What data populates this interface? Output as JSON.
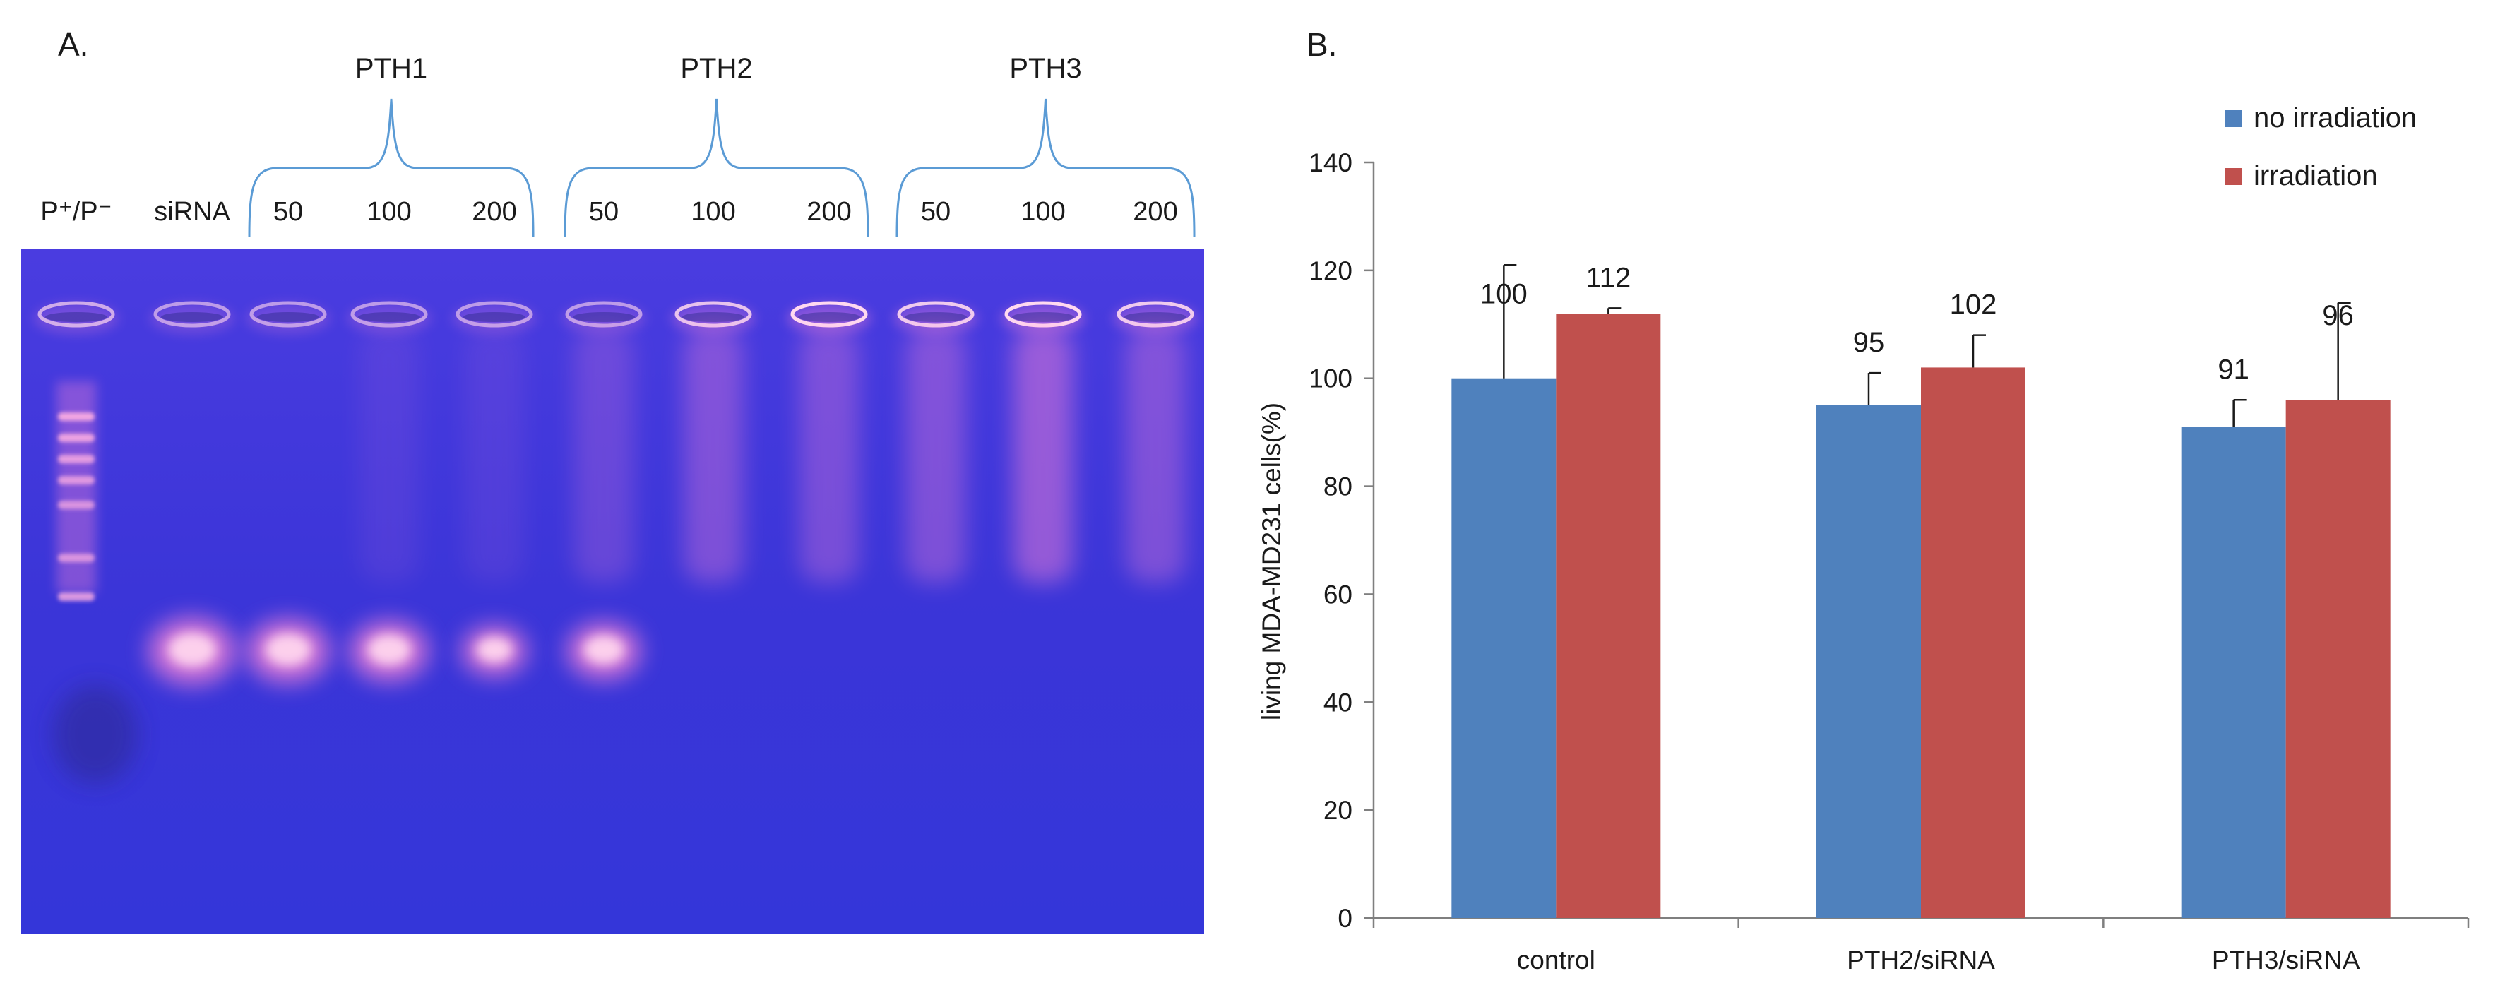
{
  "panel_a": {
    "label": "A.",
    "marker_label": "P⁺/P⁻",
    "sirna_label": "siRNA",
    "groups": [
      {
        "name": "PTH1",
        "lanes": [
          "50",
          "100",
          "200"
        ]
      },
      {
        "name": "PTH2",
        "lanes": [
          "50",
          "100",
          "200"
        ]
      },
      {
        "name": "PTH3",
        "lanes": [
          "50",
          "100",
          "200"
        ]
      }
    ],
    "colors": {
      "gel_bg": "#3b35d8",
      "band": "#ffd6ee",
      "glow": "#ff86d6"
    }
  },
  "panel_b": {
    "label": "B."
  },
  "chart_data": {
    "type": "bar",
    "title": "",
    "xlabel": "",
    "ylabel": "living MDA-MD231  cells(%)",
    "ylim": [
      0,
      140
    ],
    "yticks": [
      0,
      20,
      40,
      60,
      80,
      100,
      120,
      140
    ],
    "categories": [
      "control",
      "PTH2/siRNA",
      "PTH3/siRNA"
    ],
    "legend_position": "top-right",
    "series": [
      {
        "name": "no irradiation",
        "color": "#4f81bd",
        "values": [
          100,
          95,
          91
        ],
        "errors": [
          21,
          6,
          5
        ],
        "labels": [
          "100",
          "95",
          "91"
        ]
      },
      {
        "name": "irradiation",
        "color": "#c0504d",
        "values": [
          112,
          102,
          96
        ],
        "errors": [
          1,
          6,
          18
        ],
        "labels": [
          "112",
          "102",
          "96"
        ]
      }
    ]
  }
}
